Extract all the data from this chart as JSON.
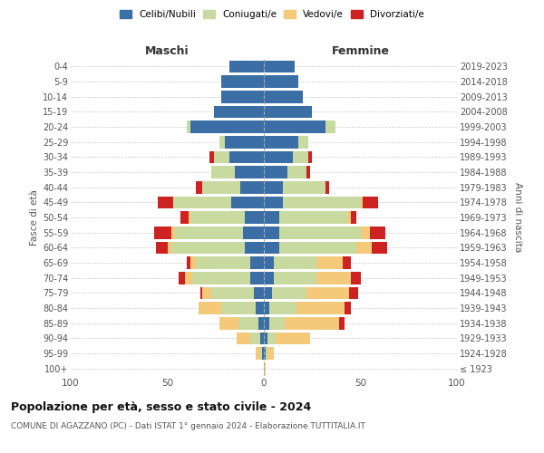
{
  "age_groups": [
    "100+",
    "95-99",
    "90-94",
    "85-89",
    "80-84",
    "75-79",
    "70-74",
    "65-69",
    "60-64",
    "55-59",
    "50-54",
    "45-49",
    "40-44",
    "35-39",
    "30-34",
    "25-29",
    "20-24",
    "15-19",
    "10-14",
    "5-9",
    "0-4"
  ],
  "birth_years": [
    "≤ 1923",
    "1924-1928",
    "1929-1933",
    "1934-1938",
    "1939-1943",
    "1944-1948",
    "1949-1953",
    "1954-1958",
    "1959-1963",
    "1964-1968",
    "1969-1973",
    "1974-1978",
    "1979-1983",
    "1984-1988",
    "1989-1993",
    "1994-1998",
    "1999-2003",
    "2004-2008",
    "2009-2013",
    "2014-2018",
    "2019-2023"
  ],
  "male_celibi": [
    0,
    1,
    2,
    3,
    4,
    5,
    7,
    7,
    10,
    11,
    10,
    17,
    12,
    15,
    18,
    20,
    38,
    26,
    22,
    22,
    18
  ],
  "male_coniugati": [
    0,
    1,
    5,
    10,
    18,
    22,
    30,
    28,
    38,
    35,
    28,
    30,
    20,
    12,
    8,
    3,
    2,
    0,
    0,
    0,
    0
  ],
  "male_vedovi": [
    0,
    2,
    7,
    10,
    12,
    5,
    4,
    3,
    2,
    2,
    1,
    0,
    0,
    0,
    0,
    0,
    0,
    0,
    0,
    0,
    0
  ],
  "male_divorziati": [
    0,
    0,
    0,
    0,
    0,
    1,
    3,
    2,
    6,
    9,
    4,
    8,
    3,
    0,
    2,
    0,
    0,
    0,
    0,
    0,
    0
  ],
  "female_nubili": [
    0,
    1,
    2,
    3,
    3,
    4,
    5,
    5,
    8,
    8,
    8,
    10,
    10,
    12,
    15,
    18,
    32,
    25,
    20,
    18,
    16
  ],
  "female_coniugate": [
    0,
    1,
    4,
    8,
    14,
    18,
    22,
    22,
    40,
    42,
    35,
    40,
    22,
    10,
    8,
    5,
    5,
    0,
    0,
    0,
    0
  ],
  "female_vedove": [
    1,
    3,
    18,
    28,
    25,
    22,
    18,
    14,
    8,
    5,
    2,
    1,
    0,
    0,
    0,
    0,
    0,
    0,
    0,
    0,
    0
  ],
  "female_divorziate": [
    0,
    0,
    0,
    3,
    3,
    5,
    5,
    4,
    8,
    8,
    3,
    8,
    2,
    2,
    2,
    0,
    0,
    0,
    0,
    0,
    0
  ],
  "color_celibi": "#3a6ea5",
  "color_coniugati": "#c8daa0",
  "color_vedovi": "#f5c97a",
  "color_divorziati": "#cc2222",
  "title": "Popolazione per età, sesso e stato civile - 2024",
  "subtitle": "COMUNE DI AGAZZANO (PC) - Dati ISTAT 1° gennaio 2024 - Elaborazione TUTTITALIA.IT",
  "xlabel_left": "Maschi",
  "xlabel_right": "Femmine",
  "ylabel_left": "Fasce di età",
  "ylabel_right": "Anni di nascita",
  "xlim": 100,
  "bg_color": "#ffffff",
  "grid_color": "#cccccc"
}
